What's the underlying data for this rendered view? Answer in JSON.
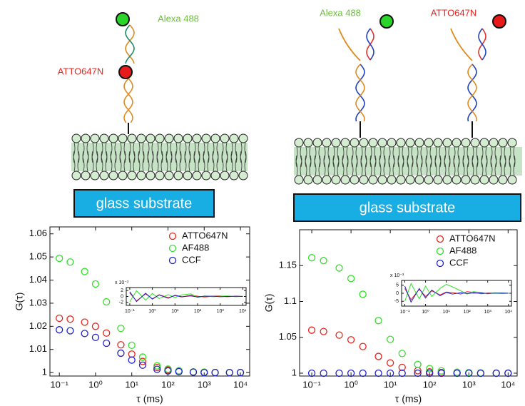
{
  "schematics": {
    "left": {
      "labels": [
        "Alexa 488",
        "ATTO647N"
      ],
      "substrate": "glass substrate"
    },
    "right": {
      "labels": [
        "Alexa 488",
        "ATTO647N"
      ],
      "substrate": "glass substrate"
    }
  },
  "chart_data": [
    {
      "type": "scatter",
      "xscale": "log",
      "xlabel": "τ (ms)",
      "ylabel": "G(τ)",
      "xlim": [
        0.055,
        18000
      ],
      "ylim": [
        0.9985,
        1.063
      ],
      "xticks": [
        {
          "value": 0.1,
          "label": "10⁻¹"
        },
        {
          "value": 1,
          "label": "10⁰"
        },
        {
          "value": 10,
          "label": "10¹"
        },
        {
          "value": 100,
          "label": "10²"
        },
        {
          "value": 1000,
          "label": "10³"
        },
        {
          "value": 10000,
          "label": "10⁴"
        }
      ],
      "yticks": [
        1,
        1.01,
        1.02,
        1.03,
        1.04,
        1.05,
        1.06
      ],
      "legend": "upper right",
      "x": [
        0.1,
        0.2,
        0.5,
        1,
        2,
        5,
        10,
        20,
        50,
        100,
        200,
        500,
        1000,
        2000,
        5000,
        10000
      ],
      "series": [
        {
          "name": "ATTO647N",
          "color": "#e8231c",
          "values": [
            1.0235,
            1.0231,
            1.0218,
            1.02,
            1.0171,
            1.012,
            1.008,
            1.0048,
            1.0022,
            1.0011,
            1.0006,
            1.0002,
            1.0001,
            1.0,
            1.0,
            1.0
          ]
        },
        {
          "name": "AF488",
          "color": "#33e02a",
          "values": [
            1.0494,
            1.0478,
            1.0437,
            1.0383,
            1.0306,
            1.0191,
            1.0118,
            1.0067,
            1.0029,
            1.0015,
            1.0008,
            1.0003,
            1.0002,
            1.0,
            1.0,
            1.0
          ]
        },
        {
          "name": "CCF",
          "color": "#1f1fd0",
          "values": [
            1.0185,
            1.0181,
            1.0169,
            1.0152,
            1.0127,
            1.0084,
            1.0054,
            1.0032,
            1.0014,
            1.0007,
            1.0004,
            1.0002,
            1.0,
            1.0,
            1.0,
            1.0
          ]
        }
      ],
      "inset": {
        "type": "line",
        "xscale": "log",
        "scale_label": "x 10⁻³",
        "xlim": [
          0.07,
          14000
        ],
        "ylim": [
          -3,
          3
        ],
        "xticks": [
          {
            "value": 0.1,
            "label": "10⁻¹"
          },
          {
            "value": 1,
            "label": "10⁰"
          },
          {
            "value": 10,
            "label": "10¹"
          },
          {
            "value": 100,
            "label": "10²"
          },
          {
            "value": 1000,
            "label": "10³"
          },
          {
            "value": 10000,
            "label": "10⁴"
          }
        ],
        "yticks": [
          -2,
          0,
          2
        ],
        "x": [
          0.1,
          0.2,
          0.5,
          1,
          2,
          5,
          10,
          20,
          50,
          100,
          200,
          500,
          1000,
          2000,
          5000,
          10000
        ],
        "series": [
          {
            "name": "ATTO647N",
            "color": "#e8231c",
            "values": [
              1.2,
              -1.5,
              0.9,
              -0.8,
              0.6,
              -0.4,
              0.3,
              -0.2,
              0.4,
              0.1,
              -0.2,
              0.1,
              0.2,
              -0.1,
              0.1,
              0
            ]
          },
          {
            "name": "AF488",
            "color": "#33e02a",
            "values": [
              -1.8,
              1.9,
              -1.2,
              1.0,
              -0.7,
              0.6,
              -0.3,
              0.5,
              0.9,
              -0.3,
              0.2,
              -0.1,
              0.1,
              0.2,
              -0.1,
              0.1
            ]
          },
          {
            "name": "CCF",
            "color": "#1f1fd0",
            "values": [
              1.6,
              -1.7,
              1.1,
              -0.9,
              0.5,
              -0.6,
              0.4,
              -0.1,
              0.2,
              -0.2,
              0.1,
              0.1,
              -0.1,
              0,
              0.1,
              0
            ]
          }
        ]
      }
    },
    {
      "type": "scatter",
      "xscale": "log",
      "xlabel": "τ (ms)",
      "ylabel": "G(τ)",
      "xlim": [
        0.049,
        17000
      ],
      "ylim": [
        0.996,
        1.2
      ],
      "xticks": [
        {
          "value": 0.1,
          "label": "10⁻¹"
        },
        {
          "value": 1,
          "label": "10⁰"
        },
        {
          "value": 10,
          "label": "10¹"
        },
        {
          "value": 100,
          "label": "10²"
        },
        {
          "value": 1000,
          "label": "10³"
        },
        {
          "value": 10000,
          "label": "10⁴"
        }
      ],
      "yticks": [
        1,
        1.05,
        1.1,
        1.15
      ],
      "legend": "upper right",
      "x": [
        0.1,
        0.2,
        0.5,
        1,
        2,
        5,
        10,
        20,
        50,
        100,
        200,
        500,
        1000,
        2000,
        5000,
        10000
      ],
      "series": [
        {
          "name": "ATTO647N",
          "color": "#e8231c",
          "values": [
            1.06,
            1.0581,
            1.0531,
            1.0465,
            1.0372,
            1.0233,
            1.0143,
            1.0081,
            1.0035,
            1.0018,
            1.0009,
            1.0004,
            1.0002,
            1.0,
            1.0,
            1.0
          ]
        },
        {
          "name": "AF488",
          "color": "#33e02a",
          "values": [
            1.161,
            1.157,
            1.1467,
            1.132,
            1.11,
            1.0733,
            1.0471,
            1.0275,
            1.0122,
            1.0063,
            1.0032,
            1.0013,
            1.0007,
            1.0003,
            1.0,
            1.0
          ]
        },
        {
          "name": "CCF",
          "color": "#1f1fd0",
          "values": [
            1.0,
            1.0,
            1.0,
            1.0,
            1.0,
            1.0,
            1.0,
            1.0,
            1.0,
            1.0,
            1.0,
            1.0,
            1.0,
            1.0,
            1.0,
            1.0
          ]
        }
      ],
      "inset": {
        "type": "line",
        "xscale": "log",
        "scale_label": "x 10⁻³",
        "xlim": [
          0.07,
          14000
        ],
        "ylim": [
          -8,
          8
        ],
        "xticks": [
          {
            "value": 0.1,
            "label": "10⁻¹"
          },
          {
            "value": 1,
            "label": "10⁰"
          },
          {
            "value": 10,
            "label": "10¹"
          },
          {
            "value": 100,
            "label": "10²"
          },
          {
            "value": 1000,
            "label": "10³"
          },
          {
            "value": 10000,
            "label": "10⁴"
          }
        ],
        "yticks": [
          -5,
          0,
          5
        ],
        "x": [
          0.1,
          0.2,
          0.5,
          1,
          2,
          5,
          10,
          20,
          50,
          100,
          200,
          500,
          1000,
          2000,
          5000,
          10000
        ],
        "series": [
          {
            "name": "ATTO647N",
            "color": "#e8231c",
            "values": [
              3.0,
              -4.0,
              2.5,
              -2.0,
              1.5,
              -1.0,
              0.8,
              0.5,
              -0.5,
              1.0,
              0.6,
              -0.3,
              0.2,
              0.1,
              -0.1,
              0
            ]
          },
          {
            "name": "AF488",
            "color": "#33e02a",
            "values": [
              -5.0,
              6.0,
              -3.5,
              4.5,
              -2.0,
              3.0,
              5.5,
              4.0,
              1.5,
              -0.5,
              1.0,
              0.5,
              -0.4,
              0.3,
              0.2,
              0.1
            ]
          },
          {
            "name": "CCF",
            "color": "#1f1fd0",
            "values": [
              4.5,
              -5.5,
              3.0,
              -3.0,
              2.0,
              -1.5,
              0.5,
              -0.5,
              0.3,
              -0.2,
              0.2,
              0.1,
              -0.1,
              0,
              0.1,
              0
            ]
          }
        ]
      }
    }
  ]
}
